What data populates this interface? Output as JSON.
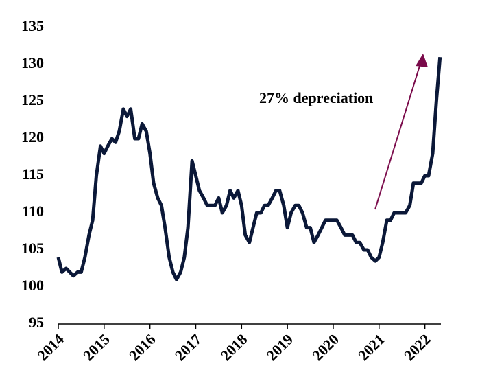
{
  "chart_data": {
    "type": "line",
    "annotation": "27% depreciation",
    "annotation_color": "#7a0a4a",
    "x": [
      2014.0,
      2014.08,
      2014.17,
      2014.25,
      2014.33,
      2014.42,
      2014.5,
      2014.58,
      2014.67,
      2014.75,
      2014.83,
      2014.92,
      2015.0,
      2015.08,
      2015.17,
      2015.25,
      2015.33,
      2015.42,
      2015.5,
      2015.58,
      2015.67,
      2015.75,
      2015.83,
      2015.92,
      2016.0,
      2016.08,
      2016.17,
      2016.25,
      2016.33,
      2016.42,
      2016.5,
      2016.58,
      2016.67,
      2016.75,
      2016.83,
      2016.92,
      2017.0,
      2017.08,
      2017.17,
      2017.25,
      2017.33,
      2017.42,
      2017.5,
      2017.58,
      2017.67,
      2017.75,
      2017.83,
      2017.92,
      2018.0,
      2018.08,
      2018.17,
      2018.25,
      2018.33,
      2018.42,
      2018.5,
      2018.58,
      2018.67,
      2018.75,
      2018.83,
      2018.92,
      2019.0,
      2019.08,
      2019.17,
      2019.25,
      2019.33,
      2019.42,
      2019.5,
      2019.58,
      2019.67,
      2019.75,
      2019.83,
      2019.92,
      2020.0,
      2020.08,
      2020.17,
      2020.25,
      2020.33,
      2020.42,
      2020.5,
      2020.58,
      2020.67,
      2020.75,
      2020.83,
      2020.92,
      2021.0,
      2021.08,
      2021.17,
      2021.25,
      2021.33,
      2021.42,
      2021.5,
      2021.58,
      2021.67,
      2021.75,
      2021.83,
      2021.92,
      2022.0,
      2022.08,
      2022.17,
      2022.25,
      2022.33
    ],
    "series": [
      {
        "color": "#0b1838",
        "values": [
          104,
          102,
          102.5,
          102,
          101.5,
          102,
          102,
          104,
          107,
          109,
          115,
          119,
          118,
          119,
          120,
          119.5,
          121,
          124,
          123,
          124,
          120,
          120,
          122,
          121,
          118,
          114,
          112,
          111,
          108,
          104,
          102,
          101,
          102,
          104,
          108,
          117,
          115,
          113,
          112,
          111,
          111,
          111,
          112,
          110,
          111,
          113,
          112,
          113,
          111,
          107,
          106,
          108,
          110,
          110,
          111,
          111,
          112,
          113,
          113,
          111,
          108,
          110,
          111,
          111,
          110,
          108,
          108,
          106,
          107,
          108,
          109,
          109,
          109,
          109,
          108,
          107,
          107,
          107,
          106,
          106,
          105,
          105,
          104,
          103.5,
          104,
          106,
          109,
          109,
          110,
          110,
          110,
          110,
          111,
          114,
          114,
          114,
          115,
          115,
          118,
          125,
          131
        ]
      }
    ],
    "xlim": [
      2014,
      2022.35
    ],
    "xticks": [
      2014,
      2015,
      2016,
      2017,
      2018,
      2019,
      2020,
      2021,
      2022
    ],
    "ylim": [
      95,
      135
    ],
    "yticks": [
      95,
      100,
      105,
      110,
      115,
      120,
      125,
      130,
      135
    ],
    "grid": false
  }
}
